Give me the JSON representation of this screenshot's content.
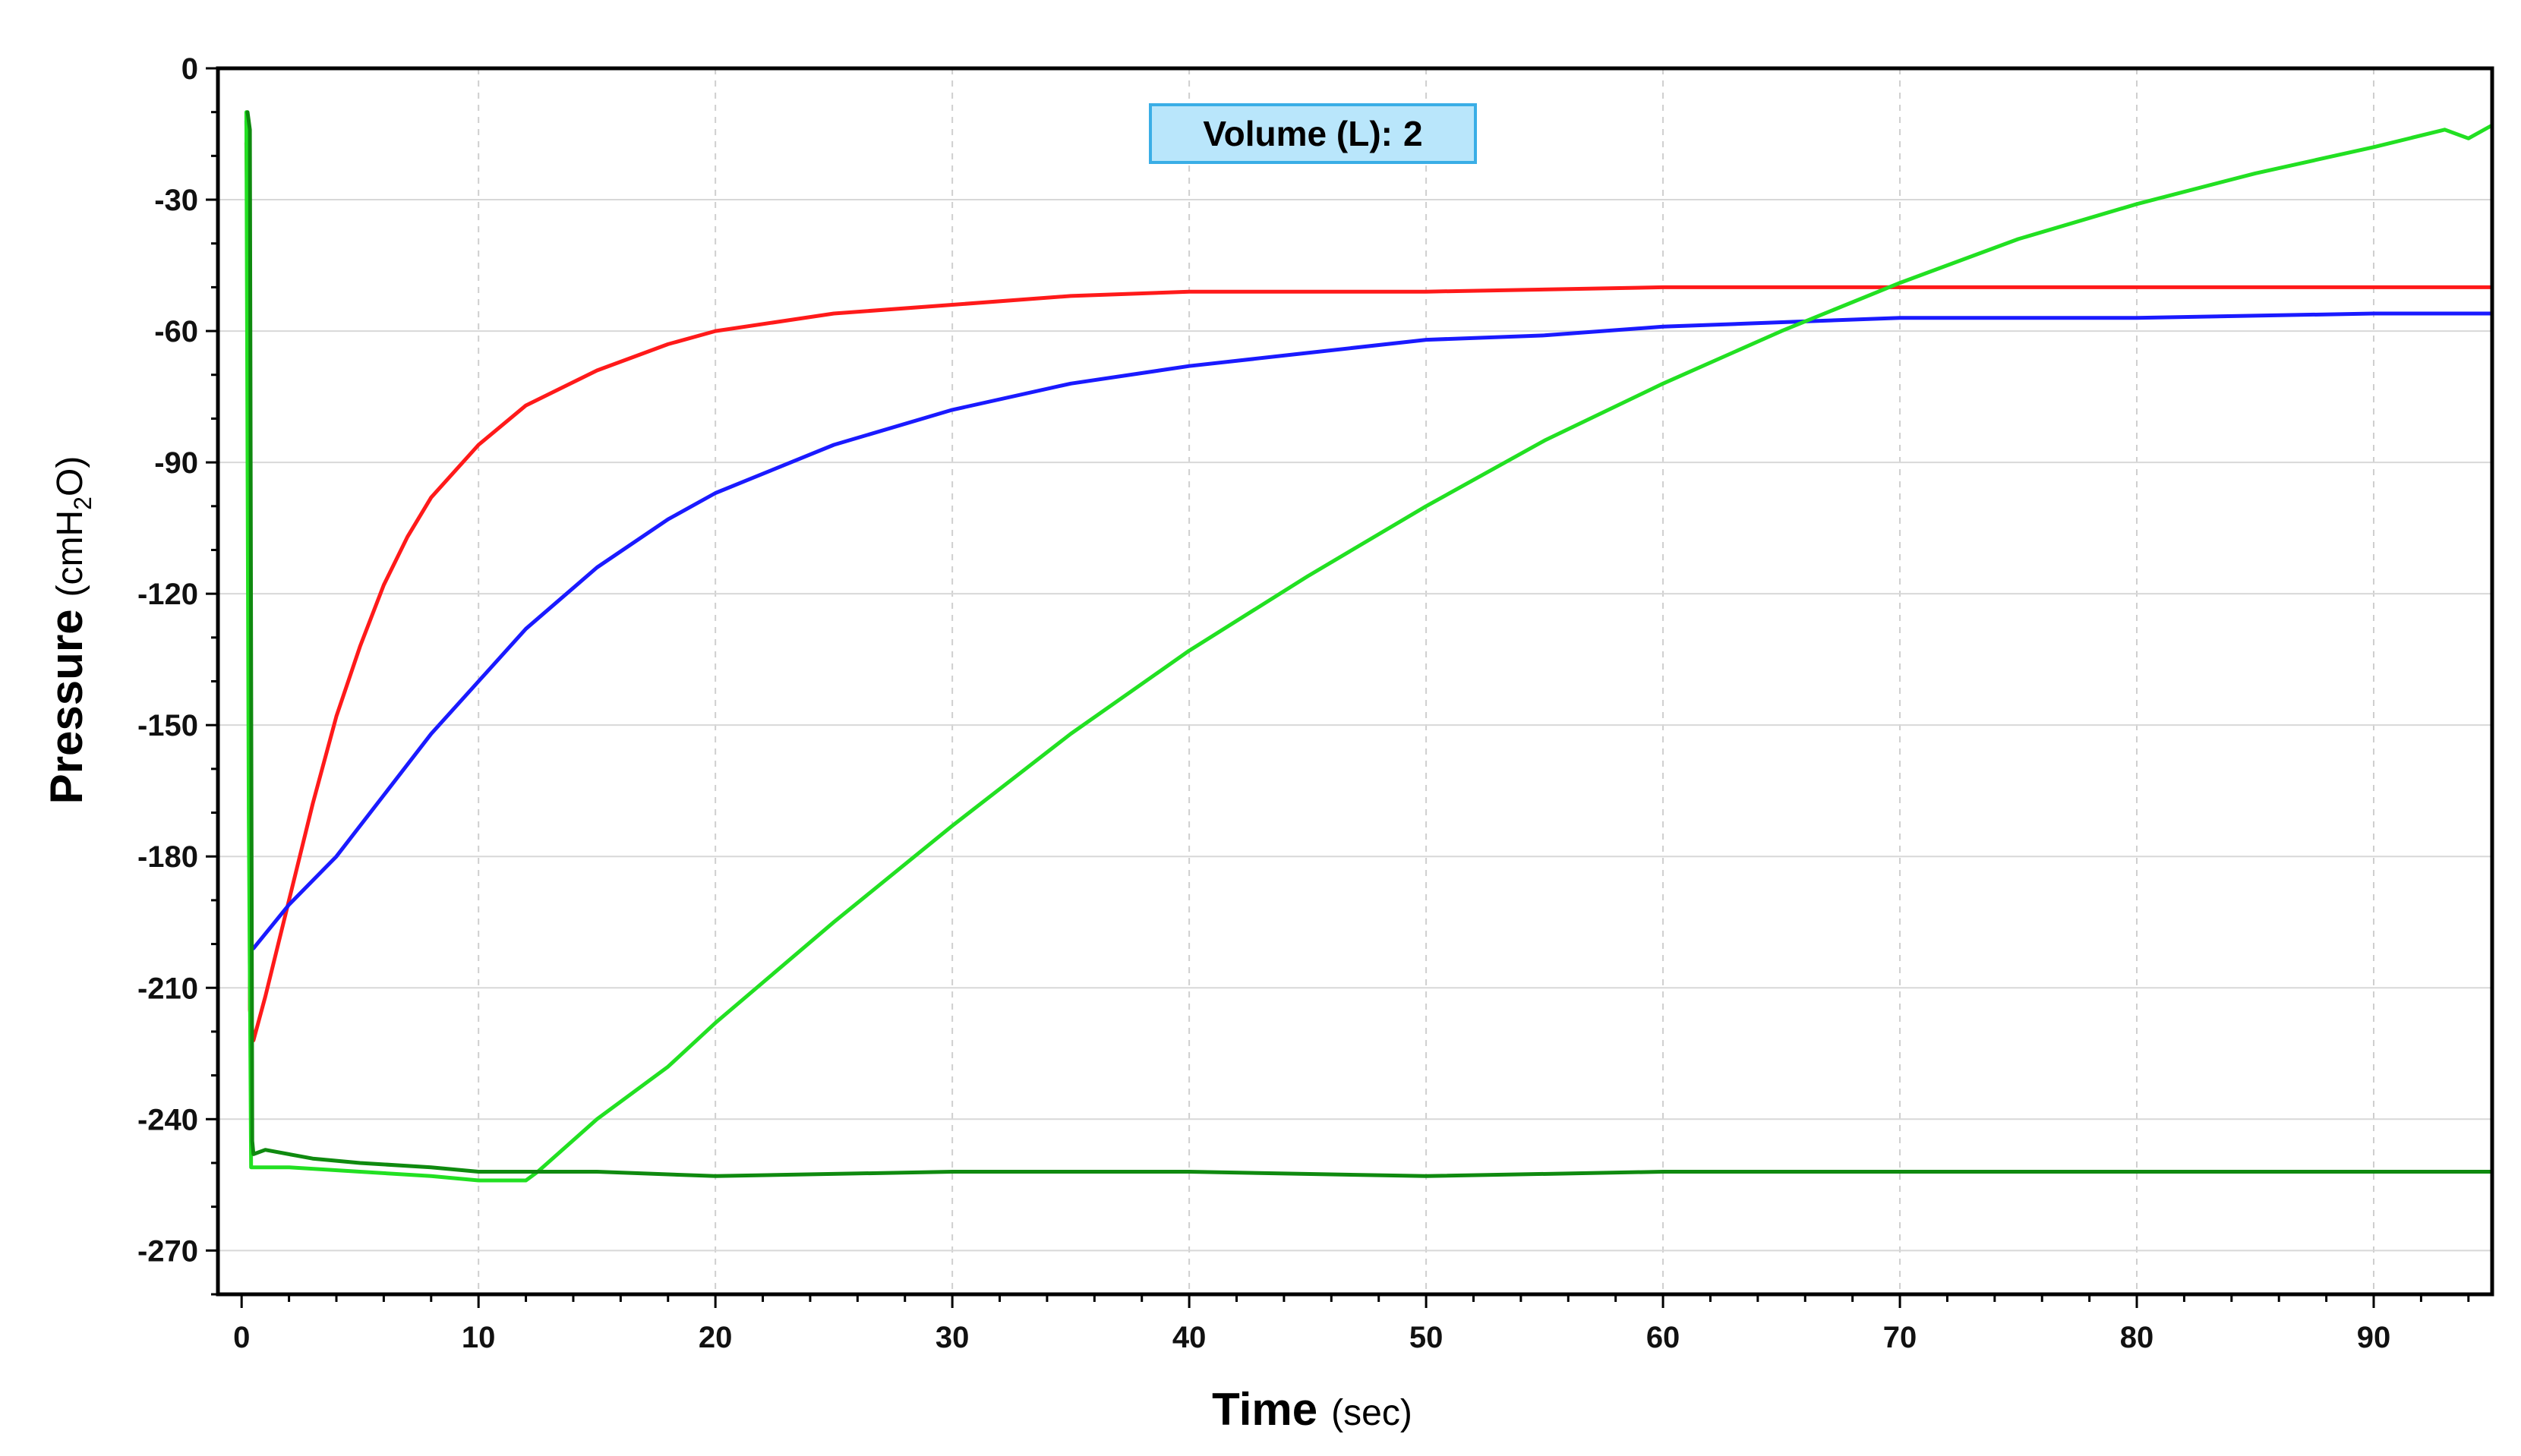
{
  "chart_data": {
    "type": "line",
    "title": "",
    "xlabel": "Time",
    "xlabel_unit": "(sec)",
    "ylabel": "Pressure",
    "ylabel_unit_prefix": "(cmH",
    "ylabel_unit_sub": "2",
    "ylabel_unit_suffix": "O)",
    "xlim": [
      -1,
      95
    ],
    "ylim": [
      -280,
      0
    ],
    "x_ticks": [
      0,
      10,
      20,
      30,
      40,
      50,
      60,
      70,
      80,
      90
    ],
    "y_ticks": [
      0,
      -30,
      -60,
      -90,
      -120,
      -150,
      -180,
      -210,
      -240,
      -270
    ],
    "grid": true,
    "legend": "none",
    "annotation": {
      "label": "Volume (L):",
      "value": "2"
    },
    "series": [
      {
        "color": "#ff1a1a",
        "points": [
          [
            0.2,
            -17
          ],
          [
            0.3,
            -60
          ],
          [
            0.35,
            -215
          ],
          [
            0.5,
            -222
          ],
          [
            1,
            -212
          ],
          [
            2,
            -190
          ],
          [
            3,
            -168
          ],
          [
            4,
            -148
          ],
          [
            5,
            -132
          ],
          [
            6,
            -118
          ],
          [
            7,
            -107
          ],
          [
            8,
            -98
          ],
          [
            10,
            -86
          ],
          [
            12,
            -77
          ],
          [
            15,
            -69
          ],
          [
            18,
            -63
          ],
          [
            20,
            -60
          ],
          [
            25,
            -56
          ],
          [
            30,
            -54
          ],
          [
            35,
            -52
          ],
          [
            40,
            -51
          ],
          [
            50,
            -51
          ],
          [
            60,
            -50
          ],
          [
            70,
            -50
          ],
          [
            80,
            -50
          ],
          [
            95,
            -50
          ]
        ]
      },
      {
        "color": "#1a1aff",
        "points": [
          [
            0.2,
            -12
          ],
          [
            0.3,
            -60
          ],
          [
            0.35,
            -200
          ],
          [
            0.5,
            -201
          ],
          [
            2,
            -191
          ],
          [
            4,
            -180
          ],
          [
            6,
            -166
          ],
          [
            8,
            -152
          ],
          [
            10,
            -140
          ],
          [
            12,
            -128
          ],
          [
            15,
            -114
          ],
          [
            18,
            -103
          ],
          [
            20,
            -97
          ],
          [
            25,
            -86
          ],
          [
            30,
            -78
          ],
          [
            35,
            -72
          ],
          [
            40,
            -68
          ],
          [
            45,
            -65
          ],
          [
            50,
            -62
          ],
          [
            55,
            -61
          ],
          [
            60,
            -59
          ],
          [
            65,
            -58
          ],
          [
            70,
            -57
          ],
          [
            80,
            -57
          ],
          [
            90,
            -56
          ],
          [
            95,
            -56
          ]
        ]
      },
      {
        "color": "#22e022",
        "points": [
          [
            0.2,
            -10
          ],
          [
            0.3,
            -170
          ],
          [
            0.4,
            -251
          ],
          [
            2,
            -251
          ],
          [
            5,
            -252
          ],
          [
            8,
            -253
          ],
          [
            10,
            -254
          ],
          [
            12,
            -254
          ],
          [
            12.5,
            -252
          ],
          [
            15,
            -240
          ],
          [
            18,
            -228
          ],
          [
            20,
            -218
          ],
          [
            25,
            -195
          ],
          [
            30,
            -173
          ],
          [
            35,
            -152
          ],
          [
            40,
            -133
          ],
          [
            45,
            -116
          ],
          [
            50,
            -100
          ],
          [
            55,
            -85
          ],
          [
            60,
            -72
          ],
          [
            65,
            -60
          ],
          [
            70,
            -49
          ],
          [
            75,
            -39
          ],
          [
            80,
            -31
          ],
          [
            85,
            -24
          ],
          [
            90,
            -18
          ],
          [
            93,
            -14
          ],
          [
            94,
            -16
          ],
          [
            95,
            -13
          ]
        ]
      },
      {
        "color": "#0f8a0f",
        "points": [
          [
            0.25,
            -10
          ],
          [
            0.35,
            -14
          ],
          [
            0.45,
            -245
          ],
          [
            0.5,
            -248
          ],
          [
            1,
            -247
          ],
          [
            3,
            -249
          ],
          [
            5,
            -250
          ],
          [
            8,
            -251
          ],
          [
            10,
            -252
          ],
          [
            12,
            -252
          ],
          [
            15,
            -252
          ],
          [
            20,
            -253
          ],
          [
            30,
            -252
          ],
          [
            40,
            -252
          ],
          [
            50,
            -253
          ],
          [
            60,
            -252
          ],
          [
            70,
            -252
          ],
          [
            80,
            -252
          ],
          [
            90,
            -252
          ],
          [
            95,
            -252
          ]
        ]
      }
    ]
  }
}
